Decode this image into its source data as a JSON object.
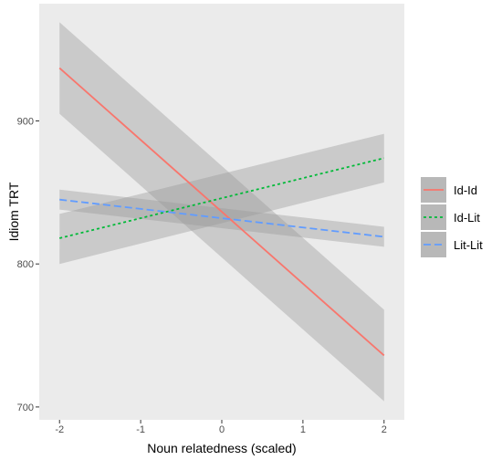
{
  "chart_data": {
    "type": "line",
    "title": "",
    "xlabel": "Noun relatedness (scaled)",
    "ylabel": "Idiom TRT",
    "xlim": [
      -2.25,
      2.25
    ],
    "ylim": [
      691,
      982
    ],
    "x_ticks": [
      -2,
      -1,
      0,
      1,
      2
    ],
    "x_tick_labels": [
      "-2",
      "-1",
      "0",
      "1",
      "2"
    ],
    "y_ticks": [
      700,
      800,
      900
    ],
    "y_tick_labels": [
      "700",
      "800",
      "900"
    ],
    "grid": false,
    "panel_background": "#ebebeb",
    "band_color": "#999999",
    "legend_position": "right",
    "series": [
      {
        "name": "Id-Id",
        "color": "#F8766D",
        "linestyle": "solid",
        "x": [
          -2,
          2
        ],
        "y": [
          937,
          736
        ],
        "ci_lower": [
          905,
          704
        ],
        "ci_upper": [
          969,
          768
        ]
      },
      {
        "name": "Id-Lit",
        "color": "#00BA38",
        "linestyle": "dotted",
        "x": [
          -2,
          2
        ],
        "y": [
          818,
          874
        ],
        "ci_lower": [
          800,
          857
        ],
        "ci_upper": [
          835,
          891
        ]
      },
      {
        "name": "Lit-Lit",
        "color": "#619CFF",
        "linestyle": "dashed",
        "x": [
          -2,
          2
        ],
        "y": [
          845,
          819
        ],
        "ci_lower": [
          838,
          812
        ],
        "ci_upper": [
          852,
          826
        ]
      }
    ]
  }
}
